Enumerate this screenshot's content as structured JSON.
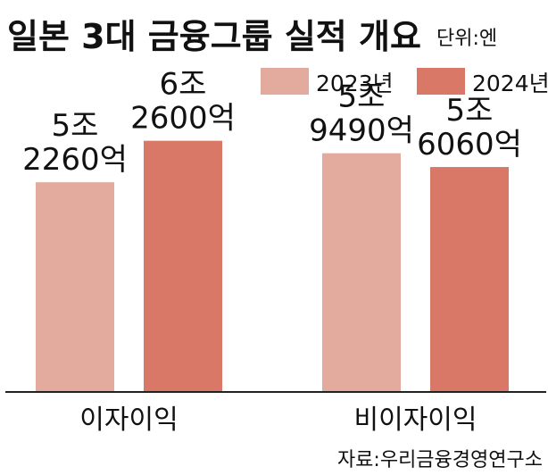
{
  "title": "일본 3대 금융그룹 실적 개요",
  "unit": "단위:엔",
  "source": "자료:우리금융경영연구소",
  "colors": {
    "series_2023": "#e3aa9e",
    "series_2024": "#d97866",
    "axis": "#222222",
    "text": "#111111"
  },
  "chart_data": {
    "type": "bar",
    "title": "일본 3대 금융그룹 실적 개요",
    "unit": "단위:엔",
    "categories": [
      "이자이익",
      "비이자이익"
    ],
    "series": [
      {
        "name": "2023년",
        "values": [
          5226000000000,
          5949000000000
        ],
        "labels": [
          [
            "5조",
            "2260억"
          ],
          [
            "5조",
            "9490억"
          ]
        ]
      },
      {
        "name": "2024년",
        "values": [
          6260000000000,
          5606000000000
        ],
        "labels": [
          [
            "6조",
            "2600억"
          ],
          [
            "5조",
            "6060억"
          ]
        ]
      }
    ],
    "ylim": [
      0,
      8500000000000
    ],
    "legend": "top-right",
    "grid": false
  }
}
